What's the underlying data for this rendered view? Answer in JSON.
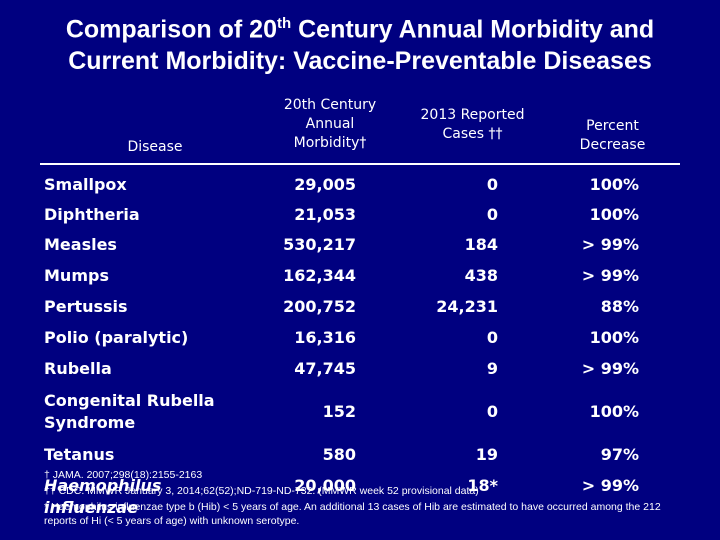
{
  "title": {
    "line1_start": "Comparison of 20",
    "line1_sup": "th",
    "line1_end": " Century Annual Morbidity and",
    "line2": "Current Morbidity: Vaccine-Preventable Diseases"
  },
  "table": {
    "header": [
      "Disease",
      "20th Century Annual Morbidity†",
      "2013 Reported Cases ††",
      "Percent Decrease"
    ],
    "rows": [
      [
        "Smallpox",
        "29,005",
        "0",
        "100%"
      ],
      [
        "Diphtheria",
        "21,053",
        "0",
        "100%"
      ],
      [
        "Measles",
        "530,217",
        "184",
        "> 99%"
      ],
      [
        "Mumps",
        "162,344",
        "438",
        "> 99%"
      ],
      [
        "Pertussis",
        "200,752",
        "24,231",
        "88%"
      ],
      [
        "Polio (paralytic)",
        "16,316",
        "0",
        "100%"
      ],
      [
        "Rubella",
        "47,745",
        "9",
        "> 99%"
      ],
      [
        "Congenital Rubella Syndrome",
        "152",
        "0",
        "100%"
      ],
      [
        "Tetanus",
        "580",
        "19",
        "97%"
      ],
      [
        "Haemophilus influenzae",
        "20,000",
        "18*",
        "> 99%"
      ]
    ]
  },
  "footnotes": [
    "† JAMA. 2007;298(18):2155-2163",
    "†† CDC. MMWR January 3, 2014;62(52);ND-719-ND-732. (MMWR week 52 provisional data)",
    "* Haemophilus influenzae type b (Hib) < 5 years of age.  An additional 13 cases of Hib are estimated to have occurred among the 212 reports of Hi (< 5 years of age) with unknown serotype."
  ]
}
